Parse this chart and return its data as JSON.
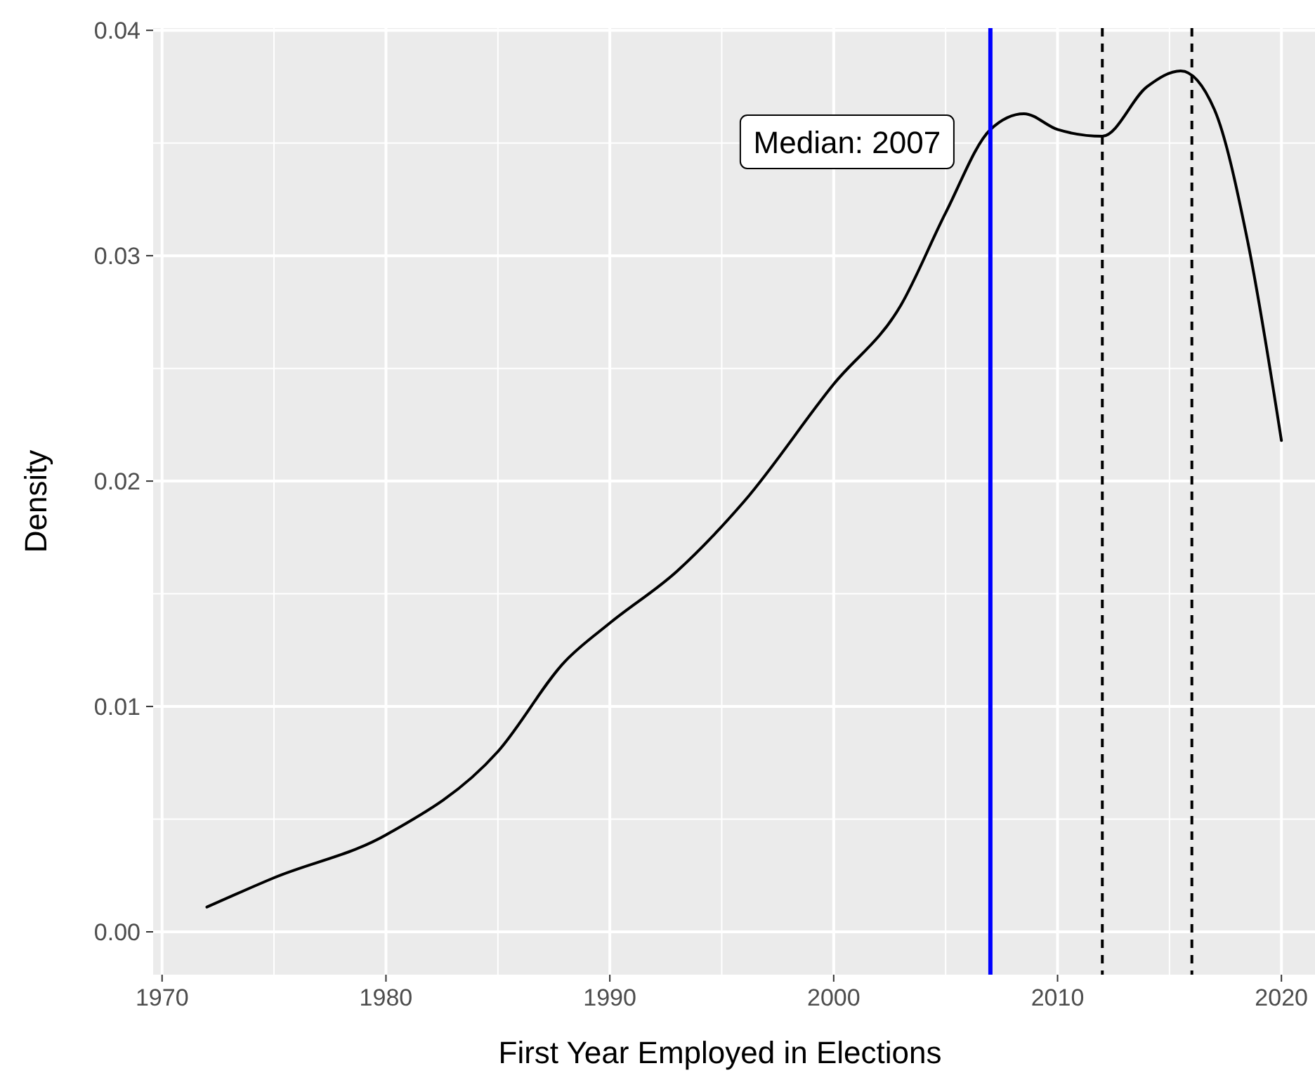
{
  "chart_data": {
    "type": "line",
    "xlabel": "First Year Employed in Elections",
    "ylabel": "Density",
    "x": [
      1972,
      1975,
      1980,
      1985,
      1988,
      1990,
      1993,
      1996,
      2000,
      2003,
      2005,
      2007,
      2008.5,
      2010,
      2012,
      2014,
      2015.5,
      2017,
      2018.5,
      2020
    ],
    "series": [
      {
        "color": "#000000",
        "values": [
          0.0011,
          0.0024,
          0.0043,
          0.008,
          0.012,
          0.0137,
          0.016,
          0.0191,
          0.0243,
          0.0278,
          0.0319,
          0.0356,
          0.0363,
          0.0356,
          0.0353,
          0.0375,
          0.0382,
          0.0365,
          0.0306,
          0.0218
        ]
      }
    ],
    "xlim": [
      1969.6,
      2021.5
    ],
    "xticks": [
      1970,
      1980,
      1990,
      2000,
      2010,
      2020
    ],
    "ylim": [
      -0.0019,
      0.0401
    ],
    "yticks": [
      {
        "value": 0,
        "label": "0.00"
      },
      {
        "value": 0.01,
        "label": "0.01"
      },
      {
        "value": 0.02,
        "label": "0.02"
      },
      {
        "value": 0.03,
        "label": "0.03"
      },
      {
        "value": 0.04,
        "label": "0.04"
      }
    ],
    "ref_lines": [
      {
        "axis": "x",
        "value": 2007,
        "label": null,
        "color": "#0000ff",
        "line_style": "solid"
      },
      {
        "axis": "x",
        "value": 2012,
        "label": null,
        "color": "#000000",
        "line_style": "dashed"
      },
      {
        "axis": "x",
        "value": 2016,
        "label": null,
        "color": "#000000",
        "line_style": "dashed"
      }
    ],
    "annotations": [
      "Median: 2007"
    ],
    "grid": true,
    "marker": "none",
    "line_style": "solid"
  }
}
